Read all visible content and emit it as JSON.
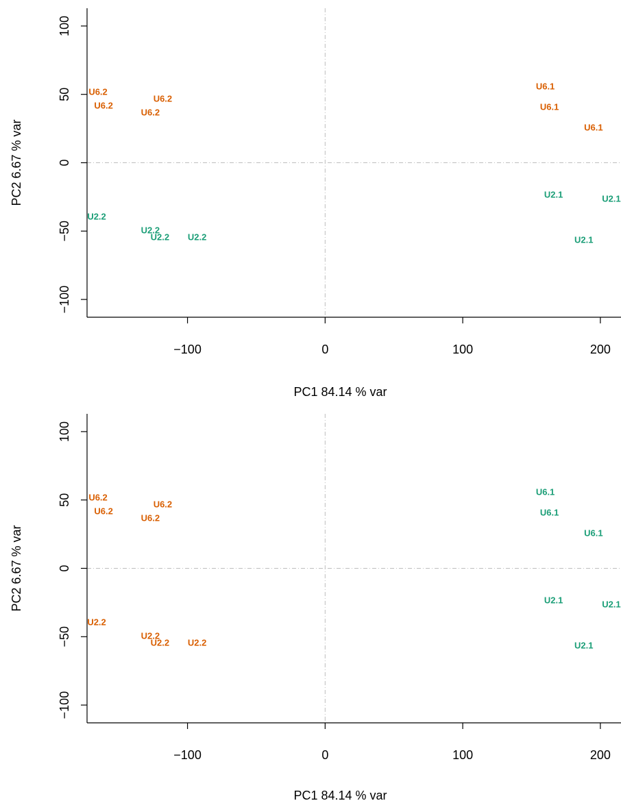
{
  "colors": {
    "orange": "#D95F02",
    "teal": "#1B9E77",
    "refline": "#BEBEBE"
  },
  "chart_data": [
    {
      "type": "scatter",
      "name": "top-panel",
      "xlabel": "PC1   84.14 % var",
      "ylabel": "PC2   6.67 % var",
      "xlim": [
        -173,
        215
      ],
      "ylim": [
        -113,
        113
      ],
      "xticks": [
        -100,
        0,
        100,
        200
      ],
      "yticks": [
        -100,
        -50,
        0,
        50,
        100
      ],
      "reference_lines": {
        "x": 0,
        "y": 0
      },
      "points": [
        {
          "label": "U6.2",
          "x": -165,
          "y": 52,
          "color": "#D95F02"
        },
        {
          "label": "U6.2",
          "x": -161,
          "y": 42,
          "color": "#D95F02"
        },
        {
          "label": "U6.2",
          "x": -118,
          "y": 47,
          "color": "#D95F02"
        },
        {
          "label": "U6.2",
          "x": -127,
          "y": 37,
          "color": "#D95F02"
        },
        {
          "label": "U6.1",
          "x": 160,
          "y": 56,
          "color": "#D95F02"
        },
        {
          "label": "U6.1",
          "x": 163,
          "y": 41,
          "color": "#D95F02"
        },
        {
          "label": "U6.1",
          "x": 195,
          "y": 26,
          "color": "#D95F02"
        },
        {
          "label": "U2.2",
          "x": -166,
          "y": -39,
          "color": "#1B9E77"
        },
        {
          "label": "U2.2",
          "x": -127,
          "y": -49,
          "color": "#1B9E77"
        },
        {
          "label": "U2.2",
          "x": -120,
          "y": -54,
          "color": "#1B9E77"
        },
        {
          "label": "U2.2",
          "x": -93,
          "y": -54,
          "color": "#1B9E77"
        },
        {
          "label": "U2.1",
          "x": 166,
          "y": -23,
          "color": "#1B9E77"
        },
        {
          "label": "U2.1",
          "x": 208,
          "y": -26,
          "color": "#1B9E77"
        },
        {
          "label": "U2.1",
          "x": 188,
          "y": -56,
          "color": "#1B9E77"
        }
      ]
    },
    {
      "type": "scatter",
      "name": "bottom-panel",
      "xlabel": "PC1   84.14 % var",
      "ylabel": "PC2   6.67 % var",
      "xlim": [
        -173,
        215
      ],
      "ylim": [
        -113,
        113
      ],
      "xticks": [
        -100,
        0,
        100,
        200
      ],
      "yticks": [
        -100,
        -50,
        0,
        50,
        100
      ],
      "reference_lines": {
        "x": 0,
        "y": 0
      },
      "points": [
        {
          "label": "U6.2",
          "x": -165,
          "y": 52,
          "color": "#D95F02"
        },
        {
          "label": "U6.2",
          "x": -161,
          "y": 42,
          "color": "#D95F02"
        },
        {
          "label": "U6.2",
          "x": -118,
          "y": 47,
          "color": "#D95F02"
        },
        {
          "label": "U6.2",
          "x": -127,
          "y": 37,
          "color": "#D95F02"
        },
        {
          "label": "U6.1",
          "x": 160,
          "y": 56,
          "color": "#1B9E77"
        },
        {
          "label": "U6.1",
          "x": 163,
          "y": 41,
          "color": "#1B9E77"
        },
        {
          "label": "U6.1",
          "x": 195,
          "y": 26,
          "color": "#1B9E77"
        },
        {
          "label": "U2.2",
          "x": -166,
          "y": -39,
          "color": "#D95F02"
        },
        {
          "label": "U2.2",
          "x": -127,
          "y": -49,
          "color": "#D95F02"
        },
        {
          "label": "U2.2",
          "x": -120,
          "y": -54,
          "color": "#D95F02"
        },
        {
          "label": "U2.2",
          "x": -93,
          "y": -54,
          "color": "#D95F02"
        },
        {
          "label": "U2.1",
          "x": 166,
          "y": -23,
          "color": "#1B9E77"
        },
        {
          "label": "U2.1",
          "x": 208,
          "y": -26,
          "color": "#1B9E77"
        },
        {
          "label": "U2.1",
          "x": 188,
          "y": -56,
          "color": "#1B9E77"
        }
      ]
    }
  ]
}
